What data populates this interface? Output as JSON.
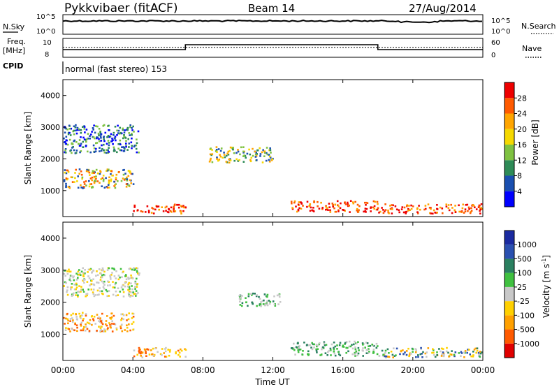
{
  "header": {
    "station": "Pykkvibaer (fitACF)",
    "beam": "Beam 14",
    "date": "27/Aug/2014"
  },
  "noise_panel": {
    "left_label": "N.Sky",
    "left_ticks": [
      "10^5",
      "10^0"
    ],
    "right_ticks": [
      "10^5",
      "10^0"
    ],
    "right_label": "N.Search"
  },
  "freq_panel": {
    "left_label_1": "Freq.",
    "left_label_2": "[MHz]",
    "left_ticks": [
      "10",
      "8"
    ],
    "right_ticks": [
      "60",
      "0"
    ],
    "right_label": "Nave",
    "nave_level_1": 20,
    "nave_level_2": 35,
    "nave_step_times": [
      "07:00",
      "18:00"
    ]
  },
  "cpid_panel": {
    "label": "CPID",
    "text": "normal (fast stereo) 153"
  },
  "chart_data": [
    {
      "type": "heatmap",
      "name": "power",
      "ylabel": "Slant Range [km]",
      "yticks": [
        "4000",
        "3000",
        "2000",
        "1000"
      ],
      "ylim": [
        180,
        4500
      ],
      "xlim": [
        "00:00",
        "24:00"
      ],
      "colorbar": {
        "label": "Power [dB]",
        "ticks": [
          "28",
          "24",
          "20",
          "16",
          "12",
          "8",
          "4"
        ],
        "colors": [
          "#0000ff",
          "#1a4fb0",
          "#2e8b57",
          "#7fc241",
          "#f5d800",
          "#ffa500",
          "#ff5a00",
          "#ee0000"
        ]
      },
      "echo_regions": [
        {
          "t0": "00:00",
          "t1": "04:20",
          "r0": 2200,
          "r1": 3100,
          "level": "low"
        },
        {
          "t0": "00:00",
          "t1": "04:00",
          "r0": 1100,
          "r1": 1700,
          "level": "high"
        },
        {
          "t0": "04:00",
          "t1": "07:00",
          "r0": 300,
          "r1": 600,
          "level": "very high"
        },
        {
          "t0": "08:20",
          "t1": "12:00",
          "r0": 1900,
          "r1": 2400,
          "level": "medium"
        },
        {
          "t0": "13:00",
          "t1": "18:00",
          "r0": 350,
          "r1": 700,
          "level": "very high"
        },
        {
          "t0": "18:00",
          "t1": "24:00",
          "r0": 300,
          "r1": 600,
          "level": "very high"
        }
      ]
    },
    {
      "type": "heatmap",
      "name": "velocity",
      "ylabel": "Slant Range [km]",
      "yticks": [
        "4000",
        "3000",
        "2000",
        "1000"
      ],
      "ylim": [
        180,
        4500
      ],
      "xlim": [
        "00:00",
        "24:00"
      ],
      "colorbar": {
        "label": "Velocity [m s",
        "label_sup": "-1",
        "label_end": "]",
        "ticks": [
          "1000",
          "500",
          "100",
          "25",
          "-25",
          "-100",
          "-500",
          "-1000"
        ],
        "colors": [
          "#e00000",
          "#ff5a00",
          "#ffa000",
          "#ffd000",
          "#c8c8c8",
          "#40c040",
          "#2a8060",
          "#2a50b0",
          "#1a2aa0"
        ]
      },
      "echo_regions": [
        {
          "t0": "00:00",
          "t1": "04:20",
          "r0": 2200,
          "r1": 3100,
          "sign": "near zero"
        },
        {
          "t0": "00:00",
          "t1": "04:00",
          "r0": 1100,
          "r1": 1700,
          "sign": "negative"
        },
        {
          "t0": "04:00",
          "t1": "07:00",
          "r0": 300,
          "r1": 600,
          "sign": "negative"
        },
        {
          "t0": "10:00",
          "t1": "12:30",
          "r0": 1900,
          "r1": 2300,
          "sign": "positive"
        },
        {
          "t0": "13:00",
          "t1": "18:00",
          "r0": 350,
          "r1": 800,
          "sign": "positive"
        },
        {
          "t0": "18:00",
          "t1": "24:00",
          "r0": 300,
          "r1": 600,
          "sign": "mixed"
        }
      ]
    }
  ],
  "xaxis": {
    "ticks": [
      "00:00",
      "04:00",
      "08:00",
      "12:00",
      "16:00",
      "20:00",
      "00:00"
    ],
    "label": "Time UT"
  }
}
